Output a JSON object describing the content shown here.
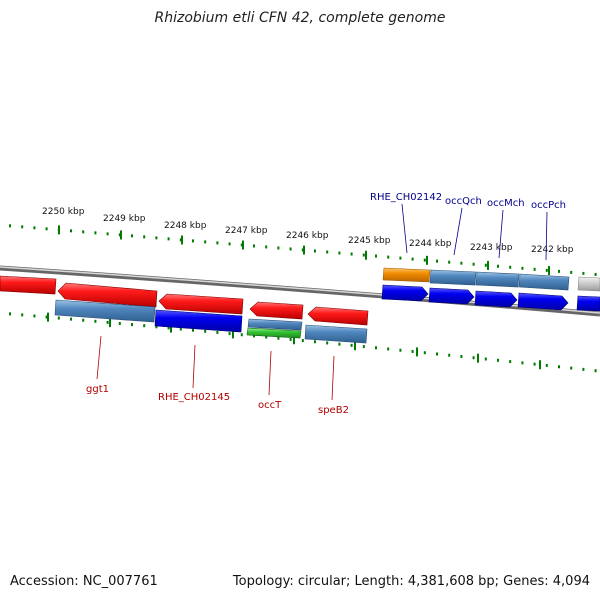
{
  "title": "Rhizobium etli CFN 42, complete genome",
  "footer": {
    "accession": "Accession: NC_007761",
    "stats": "Topology: circular; Length: 4,381,608 bp; Genes: 4,094"
  },
  "scale": {
    "unit": "kbp",
    "major_ticks": [
      2250,
      2249,
      2248,
      2247,
      2246,
      2245,
      2244,
      2243,
      2242
    ]
  },
  "gene_labels": {
    "forward": [
      "RHE_CH02142",
      "occQch",
      "occMch",
      "occPch"
    ],
    "reverse": [
      "ggt1",
      "RHE_CH02145",
      "occT",
      "speB2"
    ]
  },
  "colors": {
    "forward_label": "#00008b",
    "reverse_label": "#b00000",
    "red_gene": "#e60000",
    "blue_gene": "#0000e0",
    "steel_gene": "#4a7fb0",
    "orange_gene": "#f08c00",
    "green_gene": "#2eb82e",
    "tick": "#007a00",
    "backbone": "#888888"
  }
}
